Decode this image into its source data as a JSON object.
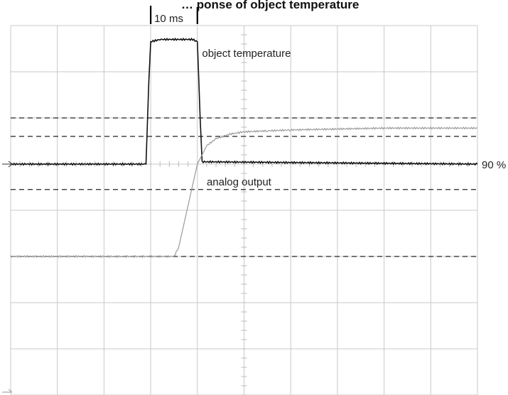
{
  "chart_data": {
    "type": "line",
    "title": "… ponse of object temperature",
    "x_range": [
      0,
      10
    ],
    "y_range": [
      0,
      8
    ],
    "grid": true,
    "timebase_marker": {
      "label": "10 ms",
      "from": 3,
      "to": 4
    },
    "reference_lines": [
      {
        "y": 6.0
      },
      {
        "y": 5.6
      },
      {
        "y": 4.45
      },
      {
        "y": 3.0
      }
    ],
    "level_marker": {
      "label": "90 %",
      "y": 5.0
    },
    "series": [
      {
        "name": "object temperature",
        "color": "#111111",
        "x": [
          0,
          2.9,
          2.96,
          3.0,
          3.2,
          3.9,
          4.0,
          4.06,
          4.1,
          10
        ],
        "y": [
          5.0,
          5.0,
          6.8,
          7.65,
          7.7,
          7.7,
          7.65,
          6.0,
          5.05,
          5.0
        ]
      },
      {
        "name": "analog output",
        "color": "#999999",
        "x": [
          0,
          3.5,
          3.6,
          3.8,
          4.0,
          4.2,
          4.4,
          4.7,
          5.0,
          5.5,
          6.0,
          7.0,
          8.0,
          9.0,
          10
        ],
        "y": [
          3.0,
          3.0,
          3.2,
          4.1,
          5.0,
          5.4,
          5.55,
          5.65,
          5.7,
          5.72,
          5.74,
          5.76,
          5.78,
          5.78,
          5.78
        ]
      }
    ]
  }
}
